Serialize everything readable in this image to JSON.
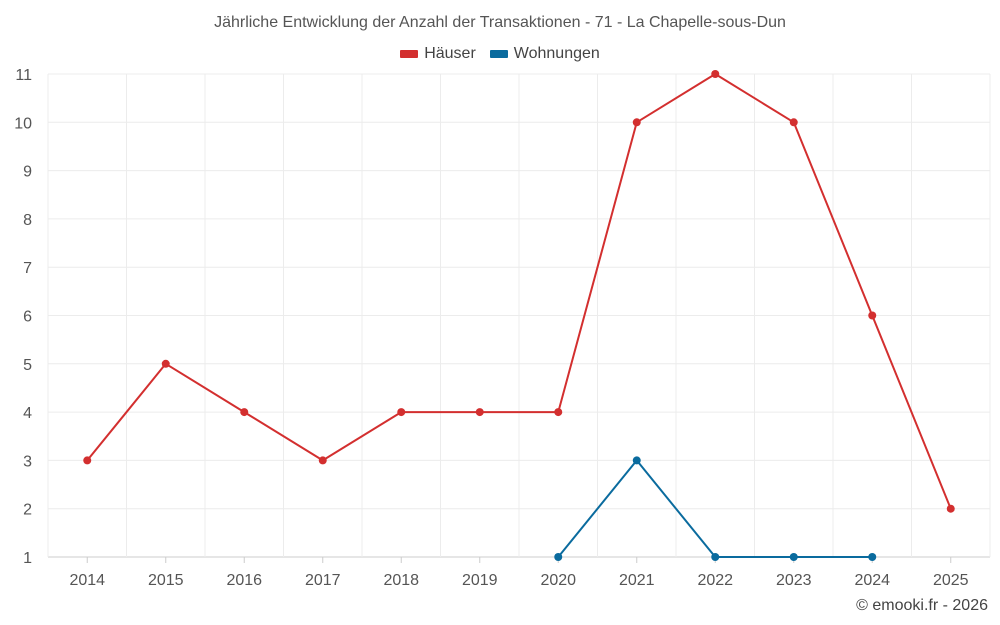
{
  "chart_data": {
    "type": "line",
    "title": "Jährliche Entwicklung der Anzahl der Transaktionen - 71 - La Chapelle-sous-Dun",
    "x": [
      "2014",
      "2015",
      "2016",
      "2017",
      "2018",
      "2019",
      "2020",
      "2021",
      "2022",
      "2023",
      "2024",
      "2025"
    ],
    "yticks": [
      1,
      2,
      3,
      4,
      5,
      6,
      7,
      8,
      9,
      10,
      11
    ],
    "ylim": [
      1,
      11
    ],
    "grid": true,
    "legend_position": "top-center",
    "series": [
      {
        "name": "Häuser",
        "color": "#d32f2f",
        "values": [
          3,
          5,
          4,
          3,
          4,
          4,
          4,
          10,
          11,
          10,
          6,
          2
        ]
      },
      {
        "name": "Wohnungen",
        "color": "#0a6b9e",
        "values": [
          null,
          null,
          null,
          null,
          null,
          null,
          1,
          3,
          1,
          1,
          1,
          null
        ]
      }
    ]
  },
  "credit": "© emooki.fr - 2026"
}
